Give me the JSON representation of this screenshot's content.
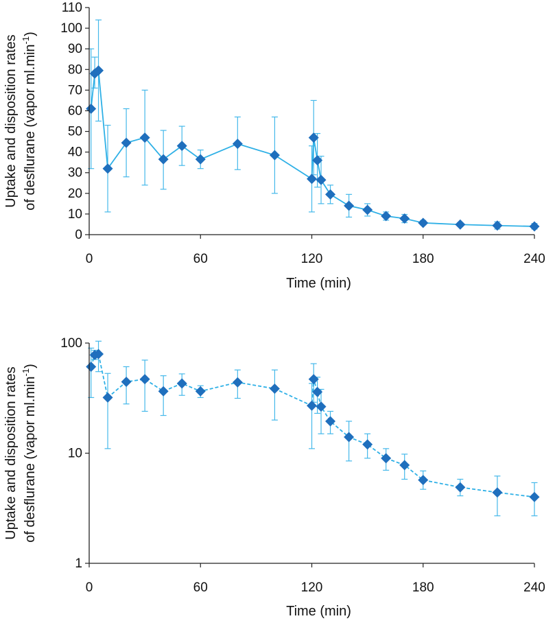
{
  "colors": {
    "line": "#2eb0e6",
    "marker": "#1f6fbd",
    "errorbar": "#44b8ea",
    "axis": "#222222"
  },
  "chart_data": [
    {
      "type": "line",
      "scale": "linear",
      "line_style": "solid",
      "xlabel": "Time (min)",
      "ylabel_line1": "Uptake and disposition rates",
      "ylabel_line2": "of desflurane (vapor ml.min",
      "ylabel_sup": "-1",
      "ylabel_close": ")",
      "xlim": [
        0,
        240
      ],
      "ylim": [
        0,
        110
      ],
      "xticks": [
        0,
        60,
        120,
        180,
        240
      ],
      "yticks": [
        0,
        10,
        20,
        30,
        40,
        50,
        60,
        70,
        80,
        90,
        100,
        110
      ],
      "points": [
        {
          "x": 1,
          "y": 61,
          "low": 32,
          "high": 90
        },
        {
          "x": 3,
          "y": 78,
          "low": 71,
          "high": 86
        },
        {
          "x": 5,
          "y": 79.5,
          "low": 55,
          "high": 104
        },
        {
          "x": 10,
          "y": 32,
          "low": 11,
          "high": 53
        },
        {
          "x": 20,
          "y": 44.5,
          "low": 28,
          "high": 61
        },
        {
          "x": 30,
          "y": 47,
          "low": 24,
          "high": 70
        },
        {
          "x": 40,
          "y": 36.5,
          "low": 22,
          "high": 50.5
        },
        {
          "x": 50,
          "y": 43,
          "low": 33.5,
          "high": 52.5
        },
        {
          "x": 60,
          "y": 36.5,
          "low": 32,
          "high": 41
        },
        {
          "x": 80,
          "y": 44,
          "low": 31.5,
          "high": 57
        },
        {
          "x": 100,
          "y": 38.5,
          "low": 20,
          "high": 57
        },
        {
          "x": 120,
          "y": 27,
          "low": 11,
          "high": 43
        },
        {
          "x": 121,
          "y": 47,
          "low": 29,
          "high": 65
        },
        {
          "x": 123,
          "y": 36,
          "low": 23,
          "high": 49
        },
        {
          "x": 125,
          "y": 26.5,
          "low": 15,
          "high": 38
        },
        {
          "x": 130,
          "y": 19.5,
          "low": 15,
          "high": 24
        },
        {
          "x": 140,
          "y": 14,
          "low": 8.5,
          "high": 19.5
        },
        {
          "x": 150,
          "y": 12,
          "low": 9,
          "high": 15
        },
        {
          "x": 160,
          "y": 9,
          "low": 7,
          "high": 11
        },
        {
          "x": 170,
          "y": 7.8,
          "low": 5.8,
          "high": 9.8
        },
        {
          "x": 180,
          "y": 5.7,
          "low": 4.7,
          "high": 6.9
        },
        {
          "x": 200,
          "y": 4.9,
          "low": 4.1,
          "high": 5.8
        },
        {
          "x": 220,
          "y": 4.4,
          "low": 2.7,
          "high": 6.2
        },
        {
          "x": 240,
          "y": 4,
          "low": 2.7,
          "high": 5.4
        }
      ]
    },
    {
      "type": "line",
      "scale": "log",
      "line_style": "dashed",
      "xlabel": "Time (min)",
      "ylabel_line1": "Uptake and disposition rates",
      "ylabel_line2": "of desflurane (vapor ml.min",
      "ylabel_sup": "-1",
      "ylabel_close": ")",
      "xlim": [
        0,
        240
      ],
      "ylim": [
        1,
        100
      ],
      "xticks": [
        0,
        60,
        120,
        180,
        240
      ],
      "yticks": [
        1,
        10,
        100
      ],
      "points": [
        {
          "x": 1,
          "y": 61,
          "low": 32,
          "high": 90
        },
        {
          "x": 3,
          "y": 78,
          "low": 71,
          "high": 86
        },
        {
          "x": 5,
          "y": 79.5,
          "low": 55,
          "high": 104
        },
        {
          "x": 10,
          "y": 32,
          "low": 11,
          "high": 53
        },
        {
          "x": 20,
          "y": 44.5,
          "low": 28,
          "high": 61
        },
        {
          "x": 30,
          "y": 47,
          "low": 24,
          "high": 70
        },
        {
          "x": 40,
          "y": 36.5,
          "low": 22,
          "high": 50.5
        },
        {
          "x": 50,
          "y": 43,
          "low": 33.5,
          "high": 52.5
        },
        {
          "x": 60,
          "y": 36.5,
          "low": 32,
          "high": 41
        },
        {
          "x": 80,
          "y": 44,
          "low": 31.5,
          "high": 57
        },
        {
          "x": 100,
          "y": 38.5,
          "low": 20,
          "high": 57
        },
        {
          "x": 120,
          "y": 27,
          "low": 11,
          "high": 43
        },
        {
          "x": 121,
          "y": 47,
          "low": 29,
          "high": 65
        },
        {
          "x": 123,
          "y": 36,
          "low": 23,
          "high": 49
        },
        {
          "x": 125,
          "y": 26.5,
          "low": 15,
          "high": 38
        },
        {
          "x": 130,
          "y": 19.5,
          "low": 15,
          "high": 24
        },
        {
          "x": 140,
          "y": 14,
          "low": 8.5,
          "high": 19.5
        },
        {
          "x": 150,
          "y": 12,
          "low": 9,
          "high": 15
        },
        {
          "x": 160,
          "y": 9,
          "low": 7,
          "high": 11
        },
        {
          "x": 170,
          "y": 7.8,
          "low": 5.8,
          "high": 9.8
        },
        {
          "x": 180,
          "y": 5.7,
          "low": 4.7,
          "high": 6.9
        },
        {
          "x": 200,
          "y": 4.9,
          "low": 4.1,
          "high": 5.8
        },
        {
          "x": 220,
          "y": 4.4,
          "low": 2.7,
          "high": 6.2
        },
        {
          "x": 240,
          "y": 4,
          "low": 2.7,
          "high": 5.4
        }
      ]
    }
  ]
}
